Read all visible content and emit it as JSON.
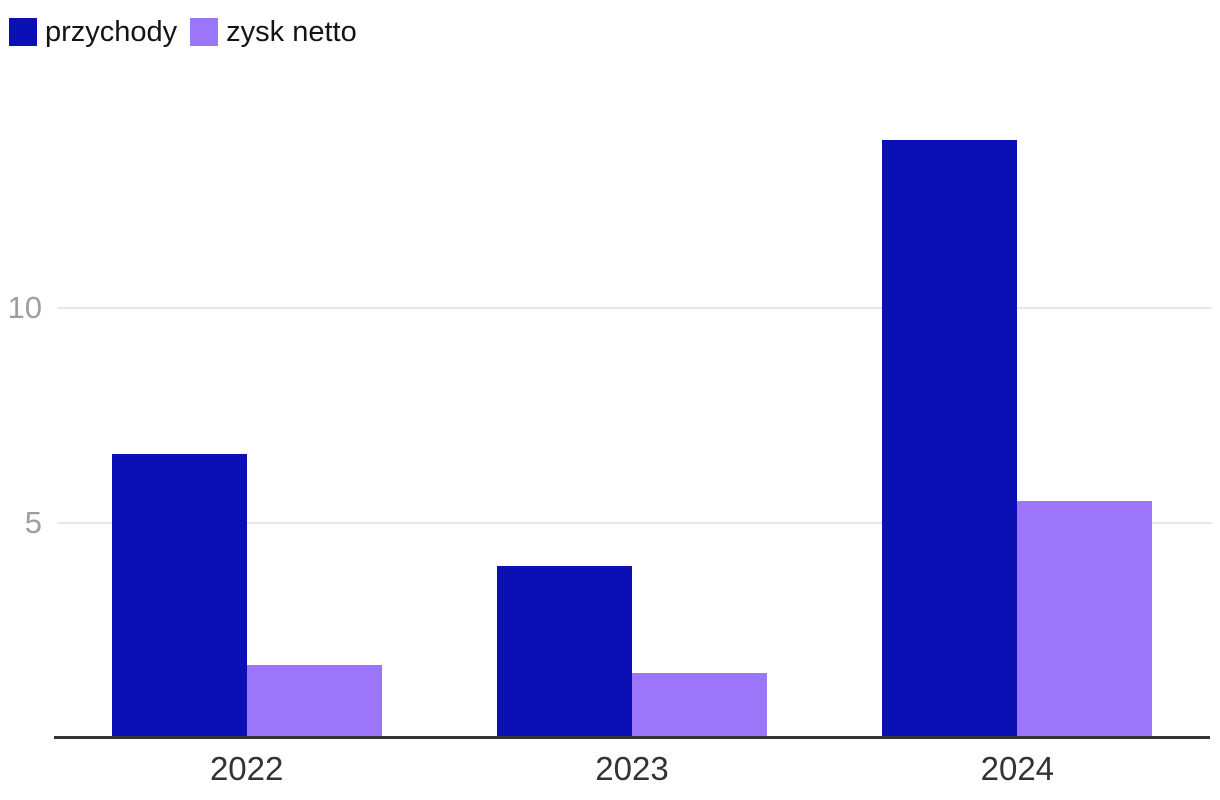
{
  "chart_data": {
    "type": "bar",
    "title": "",
    "xlabel": "",
    "ylabel": "",
    "categories": [
      "2022",
      "2023",
      "2024"
    ],
    "series": [
      {
        "name": "przychody",
        "color": "#0a10b4",
        "values": [
          6.6,
          4.0,
          13.9
        ]
      },
      {
        "name": "zysk netto",
        "color": "#9b75fa",
        "values": [
          1.7,
          1.5,
          5.5
        ]
      }
    ],
    "yticks": [
      5,
      10
    ],
    "ylim": [
      0,
      14.3
    ],
    "grid": true,
    "legend_position": "top-left",
    "colors": {
      "axis": "#333333",
      "gridline": "#e7e7e7",
      "tick_label": "#9e9e9e",
      "x_label": "#333333",
      "legend_text": "#141414",
      "background": "#ffffff"
    }
  }
}
